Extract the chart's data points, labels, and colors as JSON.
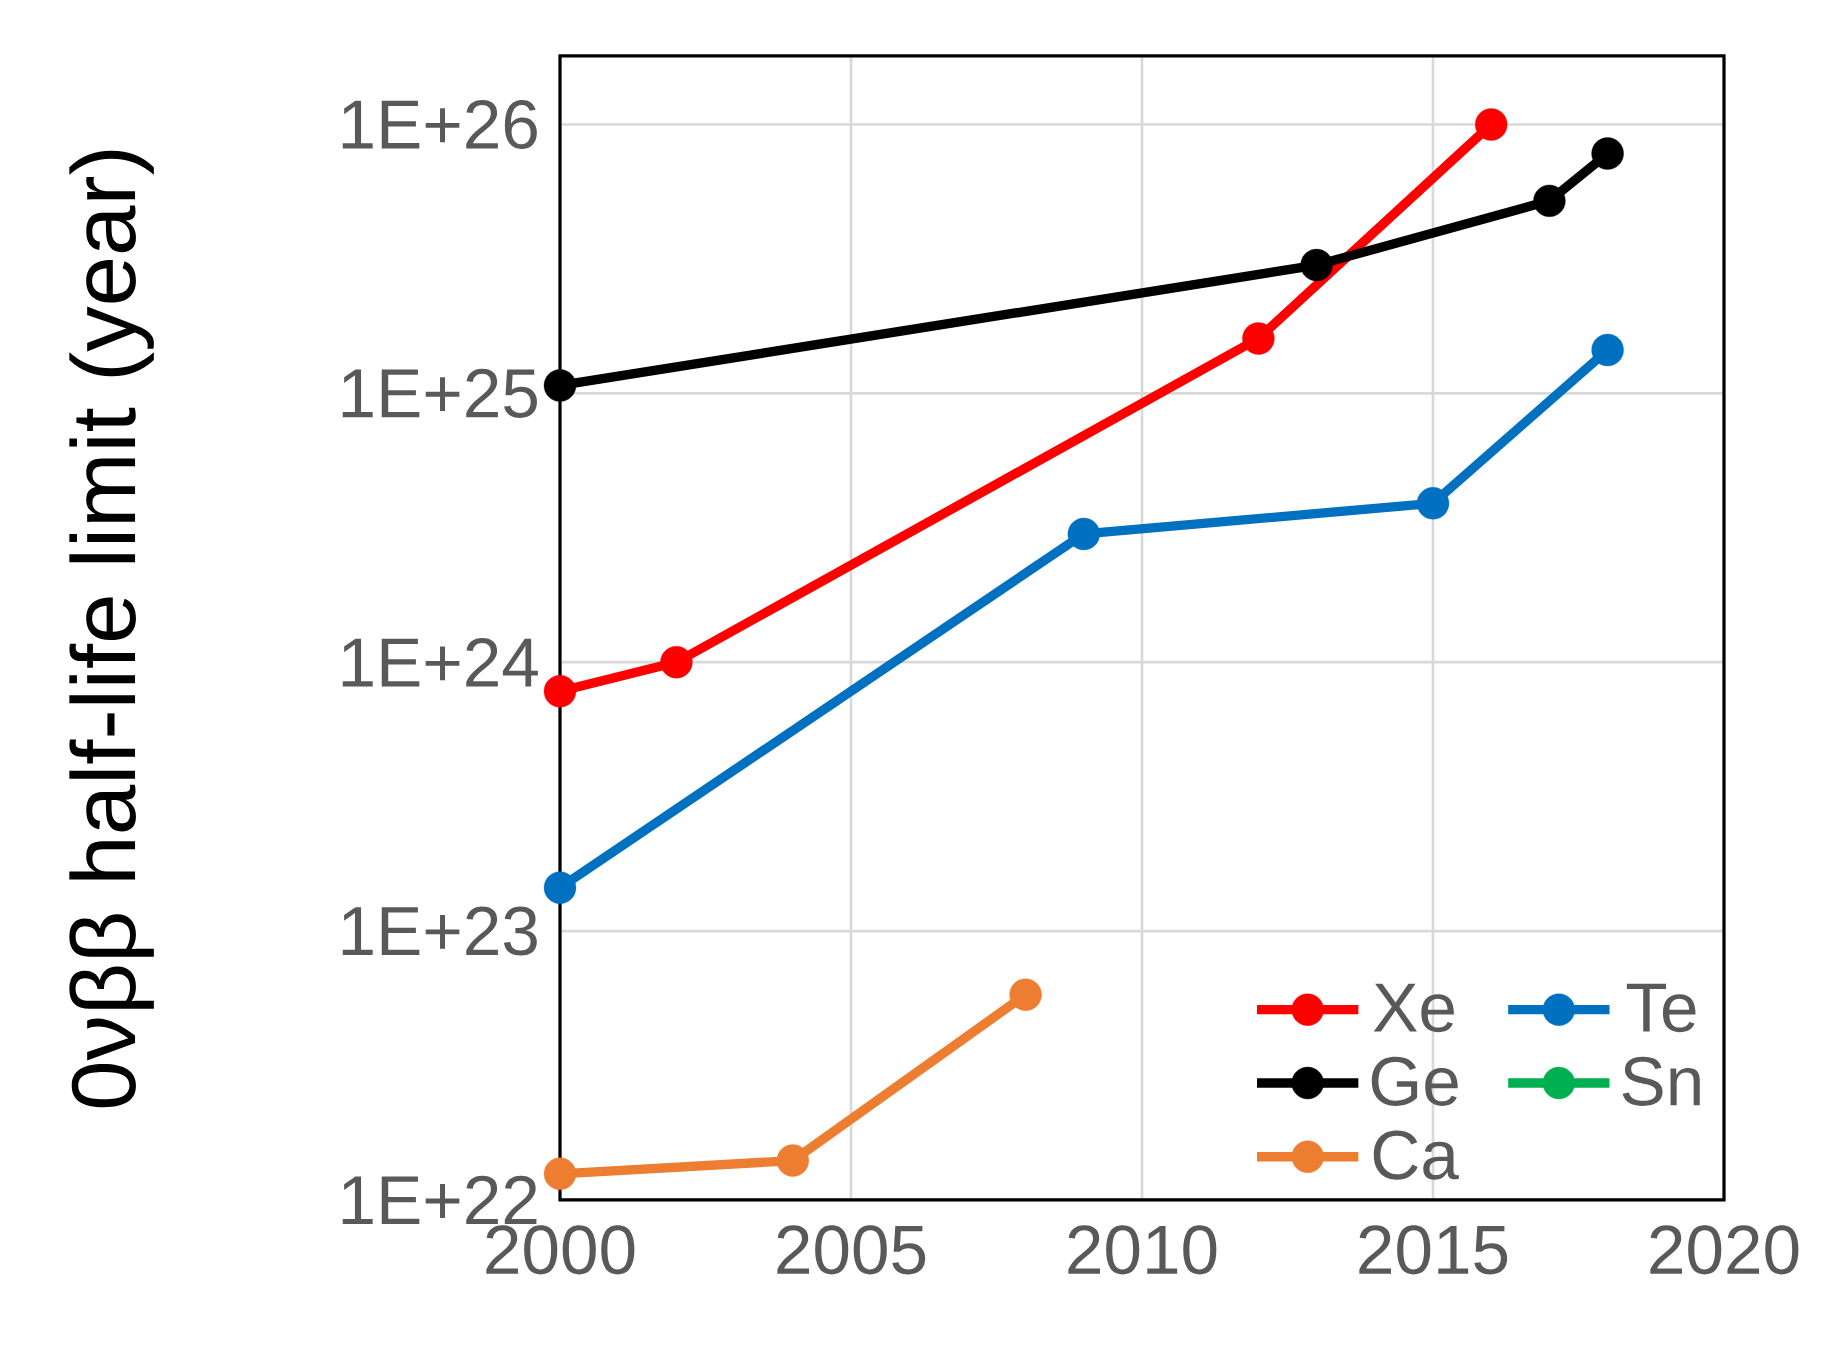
{
  "chart_data": {
    "type": "line",
    "ylabel": "0νββ half-life limit (year)",
    "xlim": [
      2000,
      2020
    ],
    "xticks": [
      2000,
      2005,
      2010,
      2015,
      2020
    ],
    "ylim": [
      1e+22,
      1.8e+26
    ],
    "yticks": [
      {
        "value": 1e+22,
        "label": "1E+22"
      },
      {
        "value": 1e+23,
        "label": "1E+23"
      },
      {
        "value": 1e+24,
        "label": "1E+24"
      },
      {
        "value": 1e+25,
        "label": "1E+25"
      },
      {
        "value": 1e+26,
        "label": "1E+26"
      }
    ],
    "log": "y",
    "grid": true,
    "legend": "bottom right",
    "marker": "circle",
    "line_style": "solid",
    "series": [
      {
        "name": "Xe",
        "color": "#ff0000",
        "x": [
          2000,
          2002,
          2012,
          2016
        ],
        "values": [
          7.8e+23,
          1e+24,
          1.6e+25,
          1e+26
        ]
      },
      {
        "name": "Te",
        "color": "#0070c0",
        "x": [
          2000,
          2009,
          2015,
          2018
        ],
        "values": [
          1.45e+23,
          3e+24,
          3.9e+24,
          1.45e+25
        ]
      },
      {
        "name": "Ge",
        "color": "#000000",
        "x": [
          2000,
          2013,
          2017,
          2018
        ],
        "values": [
          1.07e+25,
          3e+25,
          5.2e+25,
          7.8e+25
        ]
      },
      {
        "name": "Sn",
        "color": "#00b050"
      },
      {
        "name": "Ca",
        "color": "#ed7d31",
        "x": [
          2000,
          2004,
          2008
        ],
        "values": [
          1.25e+22,
          1.4e+22,
          5.8e+22
        ]
      }
    ]
  }
}
